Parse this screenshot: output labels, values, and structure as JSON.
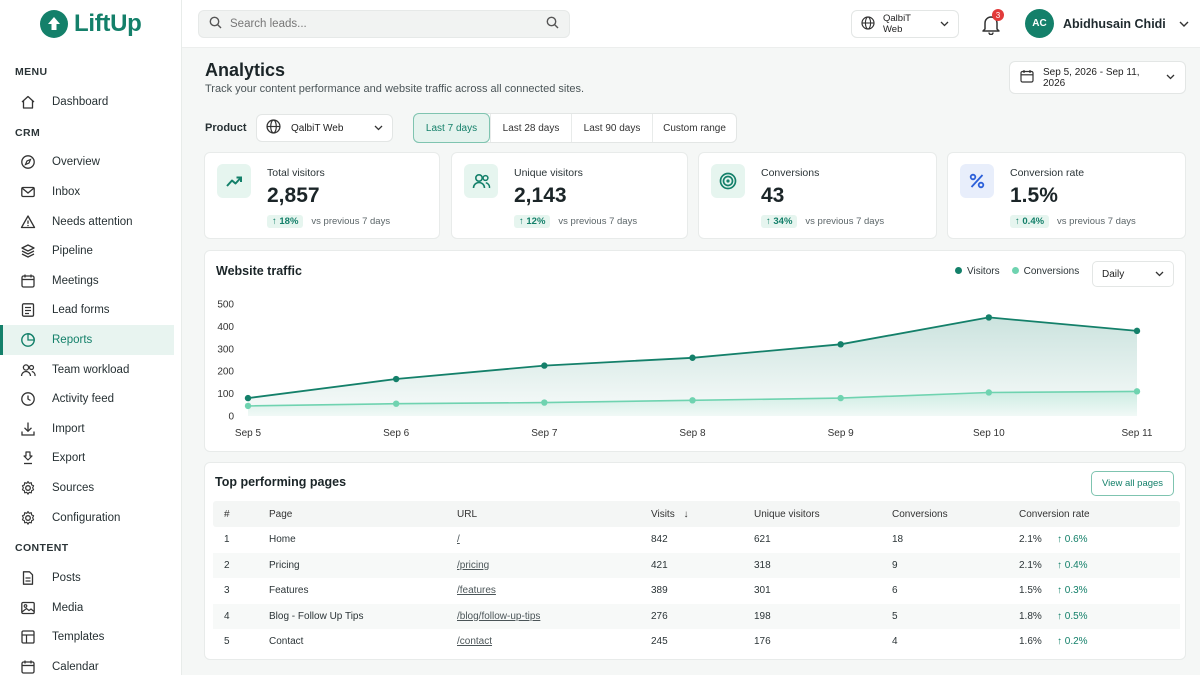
{
  "app": {
    "name": "LiftUp"
  },
  "sidebar": {
    "sections": [
      {
        "label": "MENU",
        "items": [
          {
            "label": "Dashboard",
            "icon": "home-icon"
          }
        ]
      },
      {
        "label": "CRM",
        "items": [
          {
            "label": "Overview",
            "icon": "compass-icon"
          },
          {
            "label": "Inbox",
            "icon": "mail-icon"
          },
          {
            "label": "Needs attention",
            "icon": "warning-icon"
          },
          {
            "label": "Pipeline",
            "icon": "layers-icon"
          },
          {
            "label": "Meetings",
            "icon": "calendar-icon"
          },
          {
            "label": "Lead forms",
            "icon": "form-icon"
          },
          {
            "label": "Reports",
            "icon": "reports-icon",
            "active": true
          },
          {
            "label": "Team workload",
            "icon": "users-icon"
          },
          {
            "label": "Activity feed",
            "icon": "clock-icon"
          },
          {
            "label": "Import",
            "icon": "import-icon"
          },
          {
            "label": "Export",
            "icon": "export-icon"
          },
          {
            "label": "Sources",
            "icon": "gear-icon"
          },
          {
            "label": "Configuration",
            "icon": "gear-icon"
          }
        ]
      },
      {
        "label": "CONTENT",
        "items": [
          {
            "label": "Posts",
            "icon": "document-icon"
          },
          {
            "label": "Media",
            "icon": "image-icon"
          },
          {
            "label": "Templates",
            "icon": "template-icon"
          },
          {
            "label": "Calendar",
            "icon": "calendar-icon"
          }
        ]
      }
    ]
  },
  "topbar": {
    "search_placeholder": "Search leads...",
    "site_selector": "QalbiT Web",
    "notifications_count": "3",
    "user": {
      "initials": "AC",
      "name": "Abidhusain Chidi"
    }
  },
  "header": {
    "title": "Analytics",
    "subtitle": "Track your content performance and website traffic across all connected sites.",
    "date_range": "Sep 5, 2026 - Sep 11, 2026"
  },
  "filters": {
    "product_label": "Product",
    "product_value": "QalbiT Web",
    "ranges": [
      "Last 7 days",
      "Last 28 days",
      "Last 90 days",
      "Custom range"
    ],
    "selected_range": "Last 7 days"
  },
  "kpis": [
    {
      "label": "Total visitors",
      "value": "2,857",
      "delta": "18%",
      "vs": "vs previous 7 days",
      "icon": "trending-up-icon"
    },
    {
      "label": "Unique visitors",
      "value": "2,143",
      "delta": "12%",
      "vs": "vs previous 7 days",
      "icon": "users-icon"
    },
    {
      "label": "Conversions",
      "value": "43",
      "delta": "34%",
      "vs": "vs previous 7 days",
      "icon": "target-icon"
    },
    {
      "label": "Conversion rate",
      "value": "1.5%",
      "delta": "0.4%",
      "vs": "vs previous 7 days",
      "icon": "percent-icon"
    }
  ],
  "traffic": {
    "title": "Website traffic",
    "granularity": "Daily",
    "colors": {
      "visitors": "#14806a",
      "conversions": "#6fd3b0"
    }
  },
  "chart_data": {
    "type": "area",
    "title": "Website traffic",
    "categories": [
      "Sep 5",
      "Sep 6",
      "Sep 7",
      "Sep 8",
      "Sep 9",
      "Sep 10",
      "Sep 11"
    ],
    "ylim": [
      0,
      500
    ],
    "yticks": [
      0,
      100,
      200,
      300,
      400,
      500
    ],
    "grid": false,
    "legend": "top-right",
    "series": [
      {
        "name": "Visitors",
        "values": [
          80,
          165,
          225,
          260,
          320,
          440,
          380
        ]
      },
      {
        "name": "Conversions",
        "values": [
          45,
          55,
          60,
          70,
          80,
          105,
          110
        ]
      }
    ]
  },
  "top_pages": {
    "title": "Top performing pages",
    "view_all": "View all pages",
    "columns": [
      "#",
      "Page",
      "URL",
      "Visits",
      "Unique visitors",
      "Conversions",
      "Conversion rate"
    ],
    "rows": [
      {
        "rank": "1",
        "page": "Home",
        "url": "/",
        "visits": "842",
        "unique": "621",
        "conversions": "18",
        "rate": "2.1%",
        "delta": "0.6%"
      },
      {
        "rank": "2",
        "page": "Pricing",
        "url": "/pricing",
        "visits": "421",
        "unique": "318",
        "conversions": "9",
        "rate": "2.1%",
        "delta": "0.4%"
      },
      {
        "rank": "3",
        "page": "Features",
        "url": "/features",
        "visits": "389",
        "unique": "301",
        "conversions": "6",
        "rate": "1.5%",
        "delta": "0.3%"
      },
      {
        "rank": "4",
        "page": "Blog - Follow Up Tips",
        "url": "/blog/follow-up-tips",
        "visits": "276",
        "unique": "198",
        "conversions": "5",
        "rate": "1.8%",
        "delta": "0.5%"
      },
      {
        "rank": "5",
        "page": "Contact",
        "url": "/contact",
        "visits": "245",
        "unique": "176",
        "conversions": "4",
        "rate": "1.6%",
        "delta": "0.2%"
      }
    ]
  }
}
